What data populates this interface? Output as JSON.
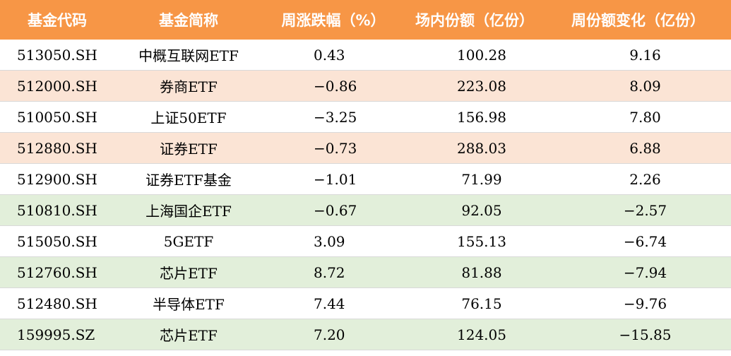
{
  "headers": {
    "code": "基金代码",
    "name": "基金简称",
    "weekly_change": "周涨跌幅（%）",
    "onfloor_shares": "场内份额（亿份）",
    "weekly_share_change": "周份额变化（亿份）"
  },
  "colors": {
    "header_bg": "#f79646",
    "header_text": "#ffffff",
    "row_orange": "#fbe4d5",
    "row_green": "#e2efda",
    "row_white": "#ffffff"
  },
  "rows": [
    {
      "code": "513050.SH",
      "name": "中概互联网ETF",
      "weekly_change": "0.43",
      "onfloor_shares": "100.28",
      "weekly_share_change": "9.16",
      "tint": "white"
    },
    {
      "code": "512000.SH",
      "name": "券商ETF",
      "weekly_change": "−0.86",
      "onfloor_shares": "223.08",
      "weekly_share_change": "8.09",
      "tint": "orange"
    },
    {
      "code": "510050.SH",
      "name": "上证50ETF",
      "weekly_change": "−3.25",
      "onfloor_shares": "156.98",
      "weekly_share_change": "7.80",
      "tint": "white"
    },
    {
      "code": "512880.SH",
      "name": "证券ETF",
      "weekly_change": "−0.73",
      "onfloor_shares": "288.03",
      "weekly_share_change": "6.88",
      "tint": "orange"
    },
    {
      "code": "512900.SH",
      "name": "证券ETF基金",
      "weekly_change": "−1.01",
      "onfloor_shares": "71.99",
      "weekly_share_change": "2.26",
      "tint": "white"
    },
    {
      "code": "510810.SH",
      "name": "上海国企ETF",
      "weekly_change": "−0.67",
      "onfloor_shares": "92.05",
      "weekly_share_change": "−2.57",
      "tint": "green"
    },
    {
      "code": "515050.SH",
      "name": "5GETF",
      "weekly_change": "3.09",
      "onfloor_shares": "155.13",
      "weekly_share_change": "−6.74",
      "tint": "white"
    },
    {
      "code": "512760.SH",
      "name": "芯片ETF",
      "weekly_change": "8.72",
      "onfloor_shares": "81.88",
      "weekly_share_change": "−7.94",
      "tint": "green"
    },
    {
      "code": "512480.SH",
      "name": "半导体ETF",
      "weekly_change": "7.44",
      "onfloor_shares": "76.15",
      "weekly_share_change": "−9.76",
      "tint": "white"
    },
    {
      "code": "159995.SZ",
      "name": "芯片ETF",
      "weekly_change": "7.20",
      "onfloor_shares": "124.05",
      "weekly_share_change": "−15.85",
      "tint": "green"
    }
  ]
}
